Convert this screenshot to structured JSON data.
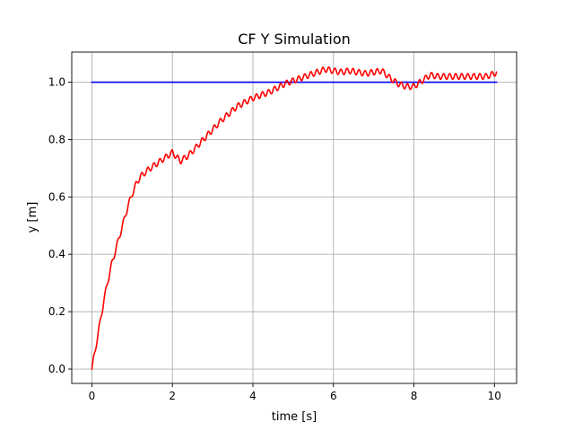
{
  "chart_data": {
    "type": "line",
    "title": "CF Y Simulation",
    "xlabel": "time [s]",
    "ylabel": "y [m]",
    "xlim": [
      -0.5,
      10.55
    ],
    "ylim": [
      -0.05,
      1.105
    ],
    "xticks": [
      0,
      2,
      4,
      6,
      8,
      10
    ],
    "yticks": [
      0.0,
      0.2,
      0.4,
      0.6,
      0.8,
      1.0
    ],
    "xtick_labels": [
      "0",
      "2",
      "4",
      "6",
      "8",
      "10"
    ],
    "ytick_labels": [
      "0.0",
      "0.2",
      "0.4",
      "0.6",
      "0.8",
      "1.0"
    ],
    "grid": true,
    "series": [
      {
        "color": "#0000ff",
        "x": [
          0,
          10.05
        ],
        "y": [
          1.0,
          1.0
        ]
      },
      {
        "color": "#ff0000",
        "oscillation_amplitude": 0.01,
        "oscillation_period": 0.15,
        "x": [
          0,
          0.1,
          0.2,
          0.3,
          0.4,
          0.5,
          0.6,
          0.7,
          0.8,
          0.9,
          1.0,
          1.1,
          1.2,
          1.4,
          1.6,
          1.8,
          2.0,
          2.1,
          2.2,
          2.4,
          2.6,
          2.8,
          3.0,
          3.2,
          3.4,
          3.6,
          3.8,
          4.0,
          4.2,
          4.4,
          4.6,
          4.8,
          5.0,
          5.2,
          5.4,
          5.6,
          5.8,
          6.0,
          6.2,
          6.4,
          6.6,
          6.8,
          7.0,
          7.2,
          7.4,
          7.6,
          7.8,
          8.0,
          8.2,
          8.4,
          8.6,
          8.8,
          9.0,
          9.2,
          9.4,
          9.6,
          9.8,
          10.0,
          10.05
        ],
        "y": [
          0.0,
          0.08,
          0.16,
          0.24,
          0.31,
          0.37,
          0.42,
          0.47,
          0.52,
          0.57,
          0.61,
          0.645,
          0.67,
          0.695,
          0.715,
          0.735,
          0.755,
          0.74,
          0.725,
          0.745,
          0.775,
          0.805,
          0.835,
          0.865,
          0.89,
          0.915,
          0.93,
          0.945,
          0.955,
          0.965,
          0.98,
          0.995,
          1.005,
          1.015,
          1.025,
          1.035,
          1.045,
          1.04,
          1.035,
          1.04,
          1.035,
          1.03,
          1.035,
          1.04,
          1.015,
          0.995,
          0.985,
          0.985,
          1.005,
          1.025,
          1.02,
          1.02,
          1.02,
          1.02,
          1.02,
          1.02,
          1.02,
          1.03,
          1.035
        ]
      }
    ]
  }
}
